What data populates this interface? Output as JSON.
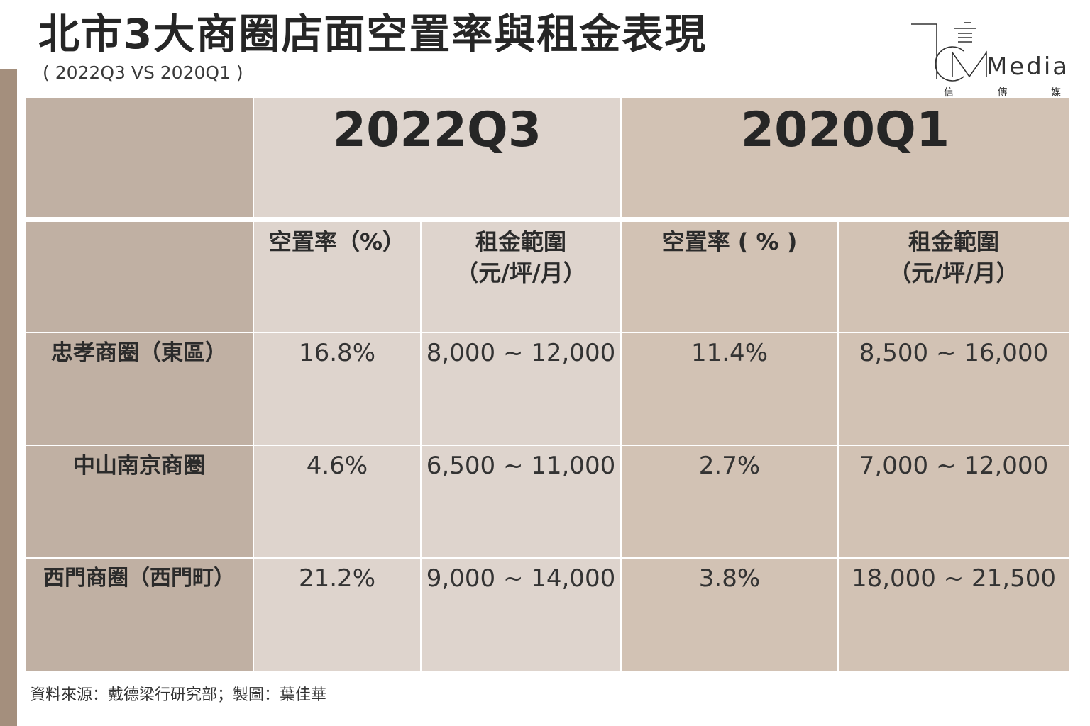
{
  "title": "北市3大商圈店面空置率與租金表現",
  "subtitle": "( 2022Q3 VS 2020Q1 )",
  "logo": {
    "wordmark": "Media",
    "sub": [
      "信",
      "傳",
      "媒"
    ]
  },
  "source": "資料來源：戴德梁行研究部；製圖：葉佳華",
  "colors": {
    "left_bar": "#a48f7d",
    "dark_cell": "#c0b0a3",
    "light_cell": "#ded4cd",
    "mid_cell": "#d2c2b4"
  },
  "chart_data": {
    "type": "table",
    "title": "北市3大商圈店面空置率與租金表現",
    "subtitle": "( 2022Q3 VS 2020Q1 )",
    "periods": [
      "2022Q3",
      "2020Q1"
    ],
    "columns": [
      {
        "period": "2022Q3",
        "line1": "空置率（%）",
        "line2": ""
      },
      {
        "period": "2022Q3",
        "line1": "租金範圍",
        "line2": "（元/坪/月）"
      },
      {
        "period": "2020Q1",
        "line1": "空置率 ( % )",
        "line2": ""
      },
      {
        "period": "2020Q1",
        "line1": "租金範圍",
        "line2": "（元/坪/月）"
      }
    ],
    "rows": [
      {
        "label": "忠孝商圈（東區）",
        "values": [
          "16.8%",
          "8,000 ~ 12,000",
          "11.4%",
          "8,500 ~ 16,000"
        ]
      },
      {
        "label": "中山南京商圈",
        "values": [
          "4.6%",
          "6,500 ~ 11,000",
          "2.7%",
          "7,000 ~ 12,000"
        ]
      },
      {
        "label": "西門商圈（西門町）",
        "values": [
          "21.2%",
          "9,000 ~ 14,000",
          "3.8%",
          "18,000 ~ 21,500"
        ]
      }
    ]
  }
}
